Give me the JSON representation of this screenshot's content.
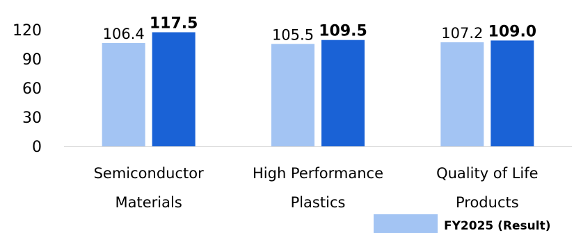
{
  "chart_data": {
    "type": "bar",
    "categories": [
      [
        "Semiconductor",
        "Materials"
      ],
      [
        "High Performance",
        "Plastics"
      ],
      [
        "Quality of Life",
        "Products"
      ]
    ],
    "series": [
      {
        "name": "FY2025 (Result)",
        "values": [
          106.4,
          105.5,
          107.2
        ],
        "labels": [
          "106.4",
          "105.5",
          "107.2"
        ],
        "color": "#a3c4f3"
      },
      {
        "name": "",
        "values": [
          117.5,
          109.5,
          109.0
        ],
        "labels": [
          "117.5",
          "109.5",
          "109.0"
        ],
        "color": "#1a62d6"
      }
    ],
    "yticks": [
      "0",
      "30",
      "60",
      "90",
      "120"
    ],
    "ylim": [
      0,
      120
    ],
    "title": "",
    "xlabel": "",
    "ylabel": "",
    "grid": false,
    "legend_position": "bottom-right"
  }
}
